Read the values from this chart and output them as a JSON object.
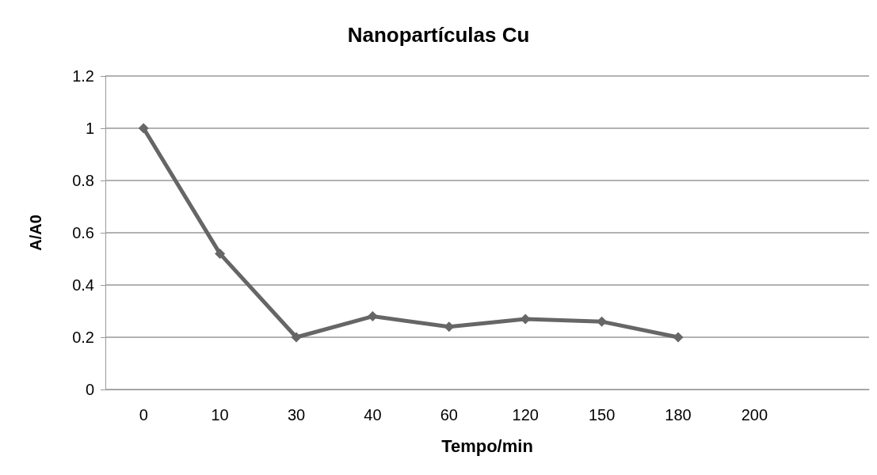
{
  "chart_data": {
    "type": "line",
    "title": "Nanopartículas Cu",
    "xlabel": "Tempo/min",
    "ylabel": "A/A0",
    "categories": [
      "0",
      "10",
      "30",
      "40",
      "60",
      "120",
      "150",
      "180",
      "200",
      null
    ],
    "series": [
      {
        "color": "#666666",
        "values": [
          1,
          0.52,
          0.2,
          0.28,
          0.24,
          0.27,
          0.26,
          0.2,
          null,
          null
        ]
      }
    ],
    "ylim": [
      0,
      1.2
    ],
    "yticks": [
      0,
      0.2,
      0.4,
      0.6,
      0.8,
      1,
      1.2
    ],
    "grid": "y",
    "marker": "diamond",
    "line_style": "solid"
  }
}
